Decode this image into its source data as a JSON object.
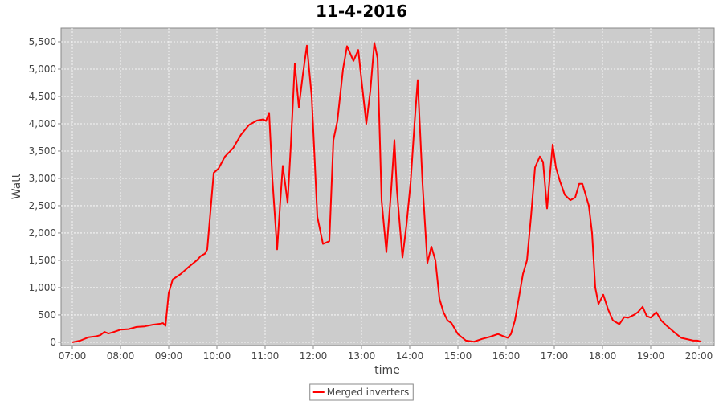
{
  "chart_data": {
    "type": "line",
    "title": "11-4-2016",
    "x_label": "time",
    "y_label": "Watt",
    "xlim": [
      "06:46",
      "20:19"
    ],
    "ylim": [
      -60,
      5750
    ],
    "xticks": [
      "07:00",
      "08:00",
      "09:00",
      "10:00",
      "11:00",
      "12:00",
      "13:00",
      "14:00",
      "15:00",
      "16:00",
      "17:00",
      "18:00",
      "19:00",
      "20:00"
    ],
    "yticks": [
      0,
      500,
      {
        "value": 1000,
        "label": "1,000"
      },
      {
        "value": 1500,
        "label": "1,500"
      },
      {
        "value": 2000,
        "label": "2,000"
      },
      {
        "value": 2500,
        "label": "2,500"
      },
      {
        "value": 3000,
        "label": "3,000"
      },
      {
        "value": 3500,
        "label": "3,500"
      },
      {
        "value": 4000,
        "label": "4,000"
      },
      {
        "value": 4500,
        "label": "4,500"
      },
      {
        "value": 5000,
        "label": "5,000"
      },
      {
        "value": 5500,
        "label": "5,500"
      }
    ],
    "grid": true,
    "legend": "bottom",
    "x": [
      "07:00",
      "07:10",
      "07:20",
      "07:30",
      "07:35",
      "07:40",
      "07:45",
      "07:50",
      "08:00",
      "08:10",
      "08:20",
      "08:30",
      "08:40",
      "08:50",
      "08:53",
      "08:56",
      "09:00",
      "09:05",
      "09:15",
      "09:25",
      "09:35",
      "09:40",
      "09:45",
      "09:48",
      "09:52",
      "09:56",
      "10:02",
      "10:10",
      "10:20",
      "10:30",
      "10:40",
      "10:50",
      "10:58",
      "11:01",
      "11:05",
      "11:09",
      "11:15",
      "11:19",
      "11:22",
      "11:25",
      "11:28",
      "11:32",
      "11:37",
      "11:42",
      "11:47",
      "11:52",
      "11:58",
      "12:05",
      "12:12",
      "12:20",
      "12:25",
      "12:30",
      "12:37",
      "12:42",
      "12:50",
      "12:56",
      "13:00",
      "13:06",
      "13:11",
      "13:16",
      "13:20",
      "13:25",
      "13:31",
      "13:37",
      "13:41",
      "13:44",
      "13:51",
      "13:56",
      "14:01",
      "14:06",
      "14:10",
      "14:16",
      "14:22",
      "14:27",
      "14:32",
      "14:37",
      "14:42",
      "14:47",
      "14:52",
      "15:00",
      "15:10",
      "15:20",
      "15:30",
      "15:40",
      "15:50",
      "15:55",
      "16:02",
      "16:06",
      "16:11",
      "16:21",
      "16:26",
      "16:31",
      "16:36",
      "16:42",
      "16:46",
      "16:51",
      "16:56",
      "16:58",
      "17:02",
      "17:07",
      "17:13",
      "17:20",
      "17:26",
      "17:31",
      "17:35",
      "17:43",
      "17:47",
      "17:51",
      "17:55",
      "18:01",
      "18:07",
      "18:13",
      "18:21",
      "18:27",
      "18:32",
      "18:39",
      "18:44",
      "18:50",
      "18:55",
      "19:00",
      "19:07",
      "19:13",
      "19:20",
      "19:32",
      "19:38",
      "19:47",
      "19:53",
      "19:58",
      "20:03"
    ],
    "series": [
      {
        "name": "Merged inverters",
        "color": "#ff0000",
        "values": [
          0,
          30,
          90,
          110,
          130,
          190,
          160,
          180,
          230,
          240,
          280,
          290,
          320,
          340,
          350,
          300,
          900,
          1150,
          1250,
          1380,
          1500,
          1580,
          1620,
          1700,
          2400,
          3100,
          3180,
          3400,
          3550,
          3800,
          3980,
          4060,
          4080,
          4050,
          4200,
          3000,
          1700,
          2600,
          3230,
          2900,
          2550,
          3600,
          5100,
          4300,
          4900,
          5430,
          4500,
          2300,
          1800,
          1850,
          3700,
          4050,
          5000,
          5420,
          5150,
          5350,
          4800,
          4000,
          4600,
          5480,
          5200,
          2600,
          1650,
          2800,
          3700,
          2800,
          1550,
          2150,
          2900,
          4000,
          4800,
          2900,
          1450,
          1750,
          1500,
          800,
          550,
          400,
          350,
          150,
          30,
          10,
          60,
          100,
          150,
          120,
          80,
          150,
          400,
          1250,
          1500,
          2300,
          3200,
          3400,
          3300,
          2450,
          3300,
          3620,
          3200,
          2950,
          2700,
          2600,
          2650,
          2900,
          2900,
          2500,
          2000,
          1000,
          700,
          870,
          600,
          400,
          330,
          460,
          450,
          500,
          550,
          650,
          480,
          450,
          550,
          400,
          300,
          150,
          80,
          50,
          30,
          30,
          10
        ]
      }
    ]
  }
}
